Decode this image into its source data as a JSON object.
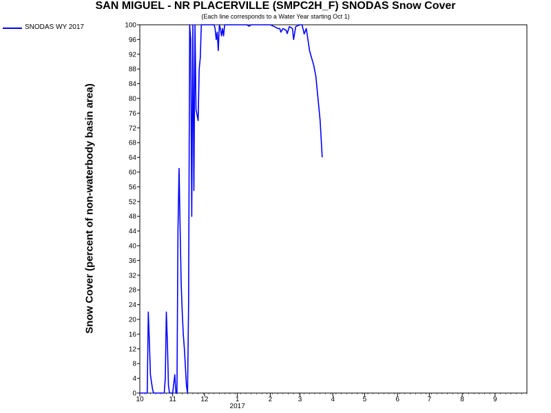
{
  "chart_data": {
    "type": "line",
    "title": "SAN MIGUEL - NR PLACERVILLE (SMPC2H_F) SNODAS Snow Cover",
    "subtitle": "(Each line corresponds to a Water Year starting Oct 1)",
    "ylabel": "Snow Cover (percent of non-waterbody basin area)",
    "xlabel": "",
    "ylim": [
      0,
      100
    ],
    "y_ticks": [
      0,
      4,
      8,
      12,
      16,
      20,
      24,
      28,
      32,
      36,
      40,
      44,
      48,
      52,
      56,
      60,
      64,
      68,
      72,
      76,
      80,
      84,
      88,
      92,
      96,
      100
    ],
    "xlim": [
      "2016-10-01",
      "2017-10-01"
    ],
    "x_ticks": [
      {
        "date": "2016-10-01",
        "label": "10"
      },
      {
        "date": "2016-11-01",
        "label": "11"
      },
      {
        "date": "2016-12-01",
        "label": "12"
      },
      {
        "date": "2017-01-01",
        "label": "1"
      },
      {
        "date": "2017-02-01",
        "label": "2"
      },
      {
        "date": "2017-03-01",
        "label": "3"
      },
      {
        "date": "2017-04-01",
        "label": "4"
      },
      {
        "date": "2017-05-01",
        "label": "5"
      },
      {
        "date": "2017-06-01",
        "label": "6"
      },
      {
        "date": "2017-07-01",
        "label": "7"
      },
      {
        "date": "2017-08-01",
        "label": "8"
      },
      {
        "date": "2017-09-01",
        "label": "9"
      }
    ],
    "x_year_label": "2017",
    "grid": false,
    "legend": "top-left outside",
    "series": [
      {
        "name": "SNODAS WY 2017",
        "color": "#0000ff",
        "points": [
          [
            "2016-10-01",
            0
          ],
          [
            "2016-10-05",
            0
          ],
          [
            "2016-10-08",
            0
          ],
          [
            "2016-10-09",
            22
          ],
          [
            "2016-10-10",
            14
          ],
          [
            "2016-10-11",
            5
          ],
          [
            "2016-10-12",
            3
          ],
          [
            "2016-10-13",
            1
          ],
          [
            "2016-10-14",
            0
          ],
          [
            "2016-10-20",
            0
          ],
          [
            "2016-10-24",
            0
          ],
          [
            "2016-10-25",
            4
          ],
          [
            "2016-10-26",
            22
          ],
          [
            "2016-10-27",
            14
          ],
          [
            "2016-10-28",
            2
          ],
          [
            "2016-10-29",
            0
          ],
          [
            "2016-11-01",
            0
          ],
          [
            "2016-11-03",
            5
          ],
          [
            "2016-11-04",
            0
          ],
          [
            "2016-11-05",
            0
          ],
          [
            "2016-11-06",
            44
          ],
          [
            "2016-11-07",
            61
          ],
          [
            "2016-11-08",
            45
          ],
          [
            "2016-11-09",
            30
          ],
          [
            "2016-11-10",
            22
          ],
          [
            "2016-11-11",
            16
          ],
          [
            "2016-11-12",
            12
          ],
          [
            "2016-11-13",
            7
          ],
          [
            "2016-11-14",
            2
          ],
          [
            "2016-11-15",
            0
          ],
          [
            "2016-11-16",
            24
          ],
          [
            "2016-11-17",
            100
          ],
          [
            "2016-11-18",
            96
          ],
          [
            "2016-11-19",
            48
          ],
          [
            "2016-11-20",
            100
          ],
          [
            "2016-11-21",
            55
          ],
          [
            "2016-11-22",
            100
          ],
          [
            "2016-11-23",
            77
          ],
          [
            "2016-11-25",
            74
          ],
          [
            "2016-11-26",
            88
          ],
          [
            "2016-11-27",
            91
          ],
          [
            "2016-11-28",
            100
          ],
          [
            "2016-12-01",
            100
          ],
          [
            "2016-12-05",
            100
          ],
          [
            "2016-12-10",
            100
          ],
          [
            "2016-12-11",
            99
          ],
          [
            "2016-12-12",
            96
          ],
          [
            "2016-12-13",
            98
          ],
          [
            "2016-12-14",
            93
          ],
          [
            "2016-12-15",
            100
          ],
          [
            "2016-12-16",
            99
          ],
          [
            "2016-12-17",
            97
          ],
          [
            "2016-12-18",
            99
          ],
          [
            "2016-12-19",
            97
          ],
          [
            "2016-12-20",
            100
          ],
          [
            "2016-12-25",
            100
          ],
          [
            "2017-01-01",
            100
          ],
          [
            "2017-01-10",
            100
          ],
          [
            "2017-01-12",
            99.6
          ],
          [
            "2017-01-14",
            100
          ],
          [
            "2017-01-20",
            100
          ],
          [
            "2017-02-01",
            100
          ],
          [
            "2017-02-05",
            99.5
          ],
          [
            "2017-02-08",
            99
          ],
          [
            "2017-02-10",
            99
          ],
          [
            "2017-02-11",
            98
          ],
          [
            "2017-02-13",
            99
          ],
          [
            "2017-02-16",
            98.5
          ],
          [
            "2017-02-17",
            97.6
          ],
          [
            "2017-02-19",
            99.5
          ],
          [
            "2017-02-22",
            99
          ],
          [
            "2017-02-23",
            96
          ],
          [
            "2017-02-25",
            99.5
          ],
          [
            "2017-03-01",
            100
          ],
          [
            "2017-03-03",
            100
          ],
          [
            "2017-03-05",
            97.5
          ],
          [
            "2017-03-07",
            99
          ],
          [
            "2017-03-10",
            93
          ],
          [
            "2017-03-12",
            91
          ],
          [
            "2017-03-14",
            89
          ],
          [
            "2017-03-16",
            86
          ],
          [
            "2017-03-18",
            80
          ],
          [
            "2017-03-20",
            74
          ],
          [
            "2017-03-22",
            64
          ]
        ]
      }
    ]
  }
}
